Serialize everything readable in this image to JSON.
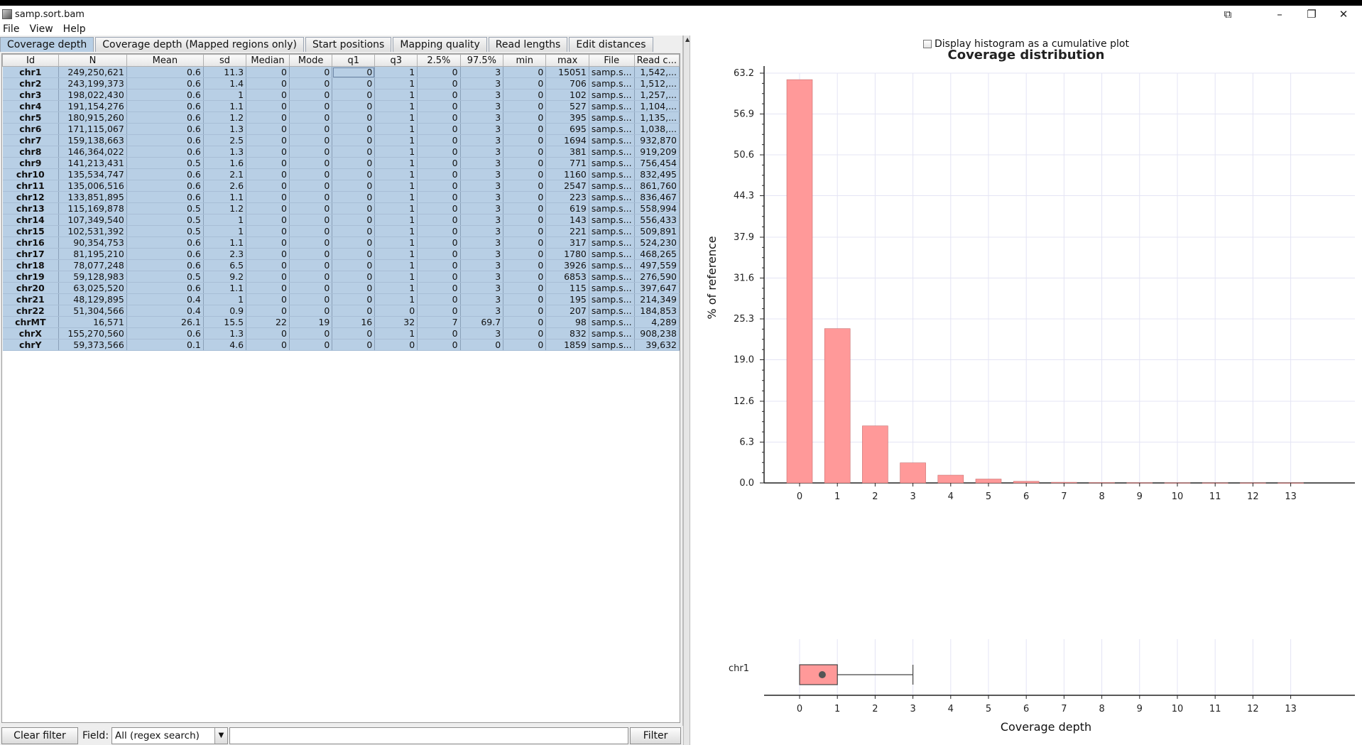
{
  "window": {
    "title": "samp.sort.bam",
    "controls": {
      "restore_tray": "⧉",
      "minimize": "–",
      "maximize": "❐",
      "close": "✕"
    }
  },
  "menu": [
    "File",
    "View",
    "Help"
  ],
  "tabs": [
    "Coverage depth",
    "Coverage depth (Mapped regions only)",
    "Start positions",
    "Mapping quality",
    "Read lengths",
    "Edit distances"
  ],
  "table": {
    "columns": [
      "Id",
      "N",
      "Mean",
      "sd",
      "Median",
      "Mode",
      "q1",
      "q3",
      "2.5%",
      "97.5%",
      "min",
      "max",
      "File",
      "Read c..."
    ],
    "rows": [
      [
        "chr1",
        "249,250,621",
        "0.6",
        "11.3",
        "0",
        "0",
        "0",
        "1",
        "0",
        "3",
        "0",
        "15051",
        "samp.s...",
        "1,542,..."
      ],
      [
        "chr2",
        "243,199,373",
        "0.6",
        "1.4",
        "0",
        "0",
        "0",
        "1",
        "0",
        "3",
        "0",
        "706",
        "samp.s...",
        "1,512,..."
      ],
      [
        "chr3",
        "198,022,430",
        "0.6",
        "1",
        "0",
        "0",
        "0",
        "1",
        "0",
        "3",
        "0",
        "102",
        "samp.s...",
        "1,257,..."
      ],
      [
        "chr4",
        "191,154,276",
        "0.6",
        "1.1",
        "0",
        "0",
        "0",
        "1",
        "0",
        "3",
        "0",
        "527",
        "samp.s...",
        "1,104,..."
      ],
      [
        "chr5",
        "180,915,260",
        "0.6",
        "1.2",
        "0",
        "0",
        "0",
        "1",
        "0",
        "3",
        "0",
        "395",
        "samp.s...",
        "1,135,..."
      ],
      [
        "chr6",
        "171,115,067",
        "0.6",
        "1.3",
        "0",
        "0",
        "0",
        "1",
        "0",
        "3",
        "0",
        "695",
        "samp.s...",
        "1,038,..."
      ],
      [
        "chr7",
        "159,138,663",
        "0.6",
        "2.5",
        "0",
        "0",
        "0",
        "1",
        "0",
        "3",
        "0",
        "1694",
        "samp.s...",
        "932,870"
      ],
      [
        "chr8",
        "146,364,022",
        "0.6",
        "1.3",
        "0",
        "0",
        "0",
        "1",
        "0",
        "3",
        "0",
        "381",
        "samp.s...",
        "919,209"
      ],
      [
        "chr9",
        "141,213,431",
        "0.5",
        "1.6",
        "0",
        "0",
        "0",
        "1",
        "0",
        "3",
        "0",
        "771",
        "samp.s...",
        "756,454"
      ],
      [
        "chr10",
        "135,534,747",
        "0.6",
        "2.1",
        "0",
        "0",
        "0",
        "1",
        "0",
        "3",
        "0",
        "1160",
        "samp.s...",
        "832,495"
      ],
      [
        "chr11",
        "135,006,516",
        "0.6",
        "2.6",
        "0",
        "0",
        "0",
        "1",
        "0",
        "3",
        "0",
        "2547",
        "samp.s...",
        "861,760"
      ],
      [
        "chr12",
        "133,851,895",
        "0.6",
        "1.1",
        "0",
        "0",
        "0",
        "1",
        "0",
        "3",
        "0",
        "223",
        "samp.s...",
        "836,467"
      ],
      [
        "chr13",
        "115,169,878",
        "0.5",
        "1.2",
        "0",
        "0",
        "0",
        "1",
        "0",
        "3",
        "0",
        "619",
        "samp.s...",
        "558,994"
      ],
      [
        "chr14",
        "107,349,540",
        "0.5",
        "1",
        "0",
        "0",
        "0",
        "1",
        "0",
        "3",
        "0",
        "143",
        "samp.s...",
        "556,433"
      ],
      [
        "chr15",
        "102,531,392",
        "0.5",
        "1",
        "0",
        "0",
        "0",
        "1",
        "0",
        "3",
        "0",
        "221",
        "samp.s...",
        "509,891"
      ],
      [
        "chr16",
        "90,354,753",
        "0.6",
        "1.1",
        "0",
        "0",
        "0",
        "1",
        "0",
        "3",
        "0",
        "317",
        "samp.s...",
        "524,230"
      ],
      [
        "chr17",
        "81,195,210",
        "0.6",
        "2.3",
        "0",
        "0",
        "0",
        "1",
        "0",
        "3",
        "0",
        "1780",
        "samp.s...",
        "468,265"
      ],
      [
        "chr18",
        "78,077,248",
        "0.6",
        "6.5",
        "0",
        "0",
        "0",
        "1",
        "0",
        "3",
        "0",
        "3926",
        "samp.s...",
        "497,559"
      ],
      [
        "chr19",
        "59,128,983",
        "0.5",
        "9.2",
        "0",
        "0",
        "0",
        "1",
        "0",
        "3",
        "0",
        "6853",
        "samp.s...",
        "276,590"
      ],
      [
        "chr20",
        "63,025,520",
        "0.6",
        "1.1",
        "0",
        "0",
        "0",
        "1",
        "0",
        "3",
        "0",
        "115",
        "samp.s...",
        "397,647"
      ],
      [
        "chr21",
        "48,129,895",
        "0.4",
        "1",
        "0",
        "0",
        "0",
        "1",
        "0",
        "3",
        "0",
        "195",
        "samp.s...",
        "214,349"
      ],
      [
        "chr22",
        "51,304,566",
        "0.4",
        "0.9",
        "0",
        "0",
        "0",
        "0",
        "0",
        "3",
        "0",
        "207",
        "samp.s...",
        "184,853"
      ],
      [
        "chrMT",
        "16,571",
        "26.1",
        "15.5",
        "22",
        "19",
        "16",
        "32",
        "7",
        "69.7",
        "0",
        "98",
        "samp.s...",
        "4,289"
      ],
      [
        "chrX",
        "155,270,560",
        "0.6",
        "1.3",
        "0",
        "0",
        "0",
        "1",
        "0",
        "3",
        "0",
        "832",
        "samp.s...",
        "908,238"
      ],
      [
        "chrY",
        "59,373,566",
        "0.1",
        "4.6",
        "0",
        "0",
        "0",
        "0",
        "0",
        "0",
        "0",
        "1859",
        "samp.s...",
        "39,632"
      ]
    ]
  },
  "filter": {
    "clear_label": "Clear filter",
    "field_label": "Field:",
    "field_value": "All (regex search)",
    "input_value": "",
    "filter_label": "Filter"
  },
  "cumulative_label": "Display histogram as a cumulative plot",
  "chart_data": {
    "type": "bar",
    "title": "Coverage distribution",
    "ylabel": "% of reference",
    "xlabel": "Coverage depth",
    "categories": [
      "0",
      "1",
      "2",
      "3",
      "4",
      "5",
      "6",
      "7",
      "8",
      "9",
      "10",
      "11",
      "12",
      "13"
    ],
    "values": [
      62.2,
      23.8,
      8.8,
      3.1,
      1.2,
      0.6,
      0.25,
      0.1,
      0.05,
      0.03,
      0.02,
      0.01,
      0.01,
      0.01
    ],
    "yticks": [
      "0.0",
      "6.3",
      "12.6",
      "19.0",
      "25.3",
      "31.6",
      "37.9",
      "44.3",
      "50.6",
      "56.9",
      "63.2"
    ],
    "ylim": [
      0,
      63.2
    ],
    "bar_color": "#ff9999",
    "grid": true,
    "boxplot": {
      "label": "chr1",
      "min": 0,
      "q1": 0,
      "median": 0,
      "q3": 1,
      "max": 3,
      "mean": 0.6
    }
  }
}
